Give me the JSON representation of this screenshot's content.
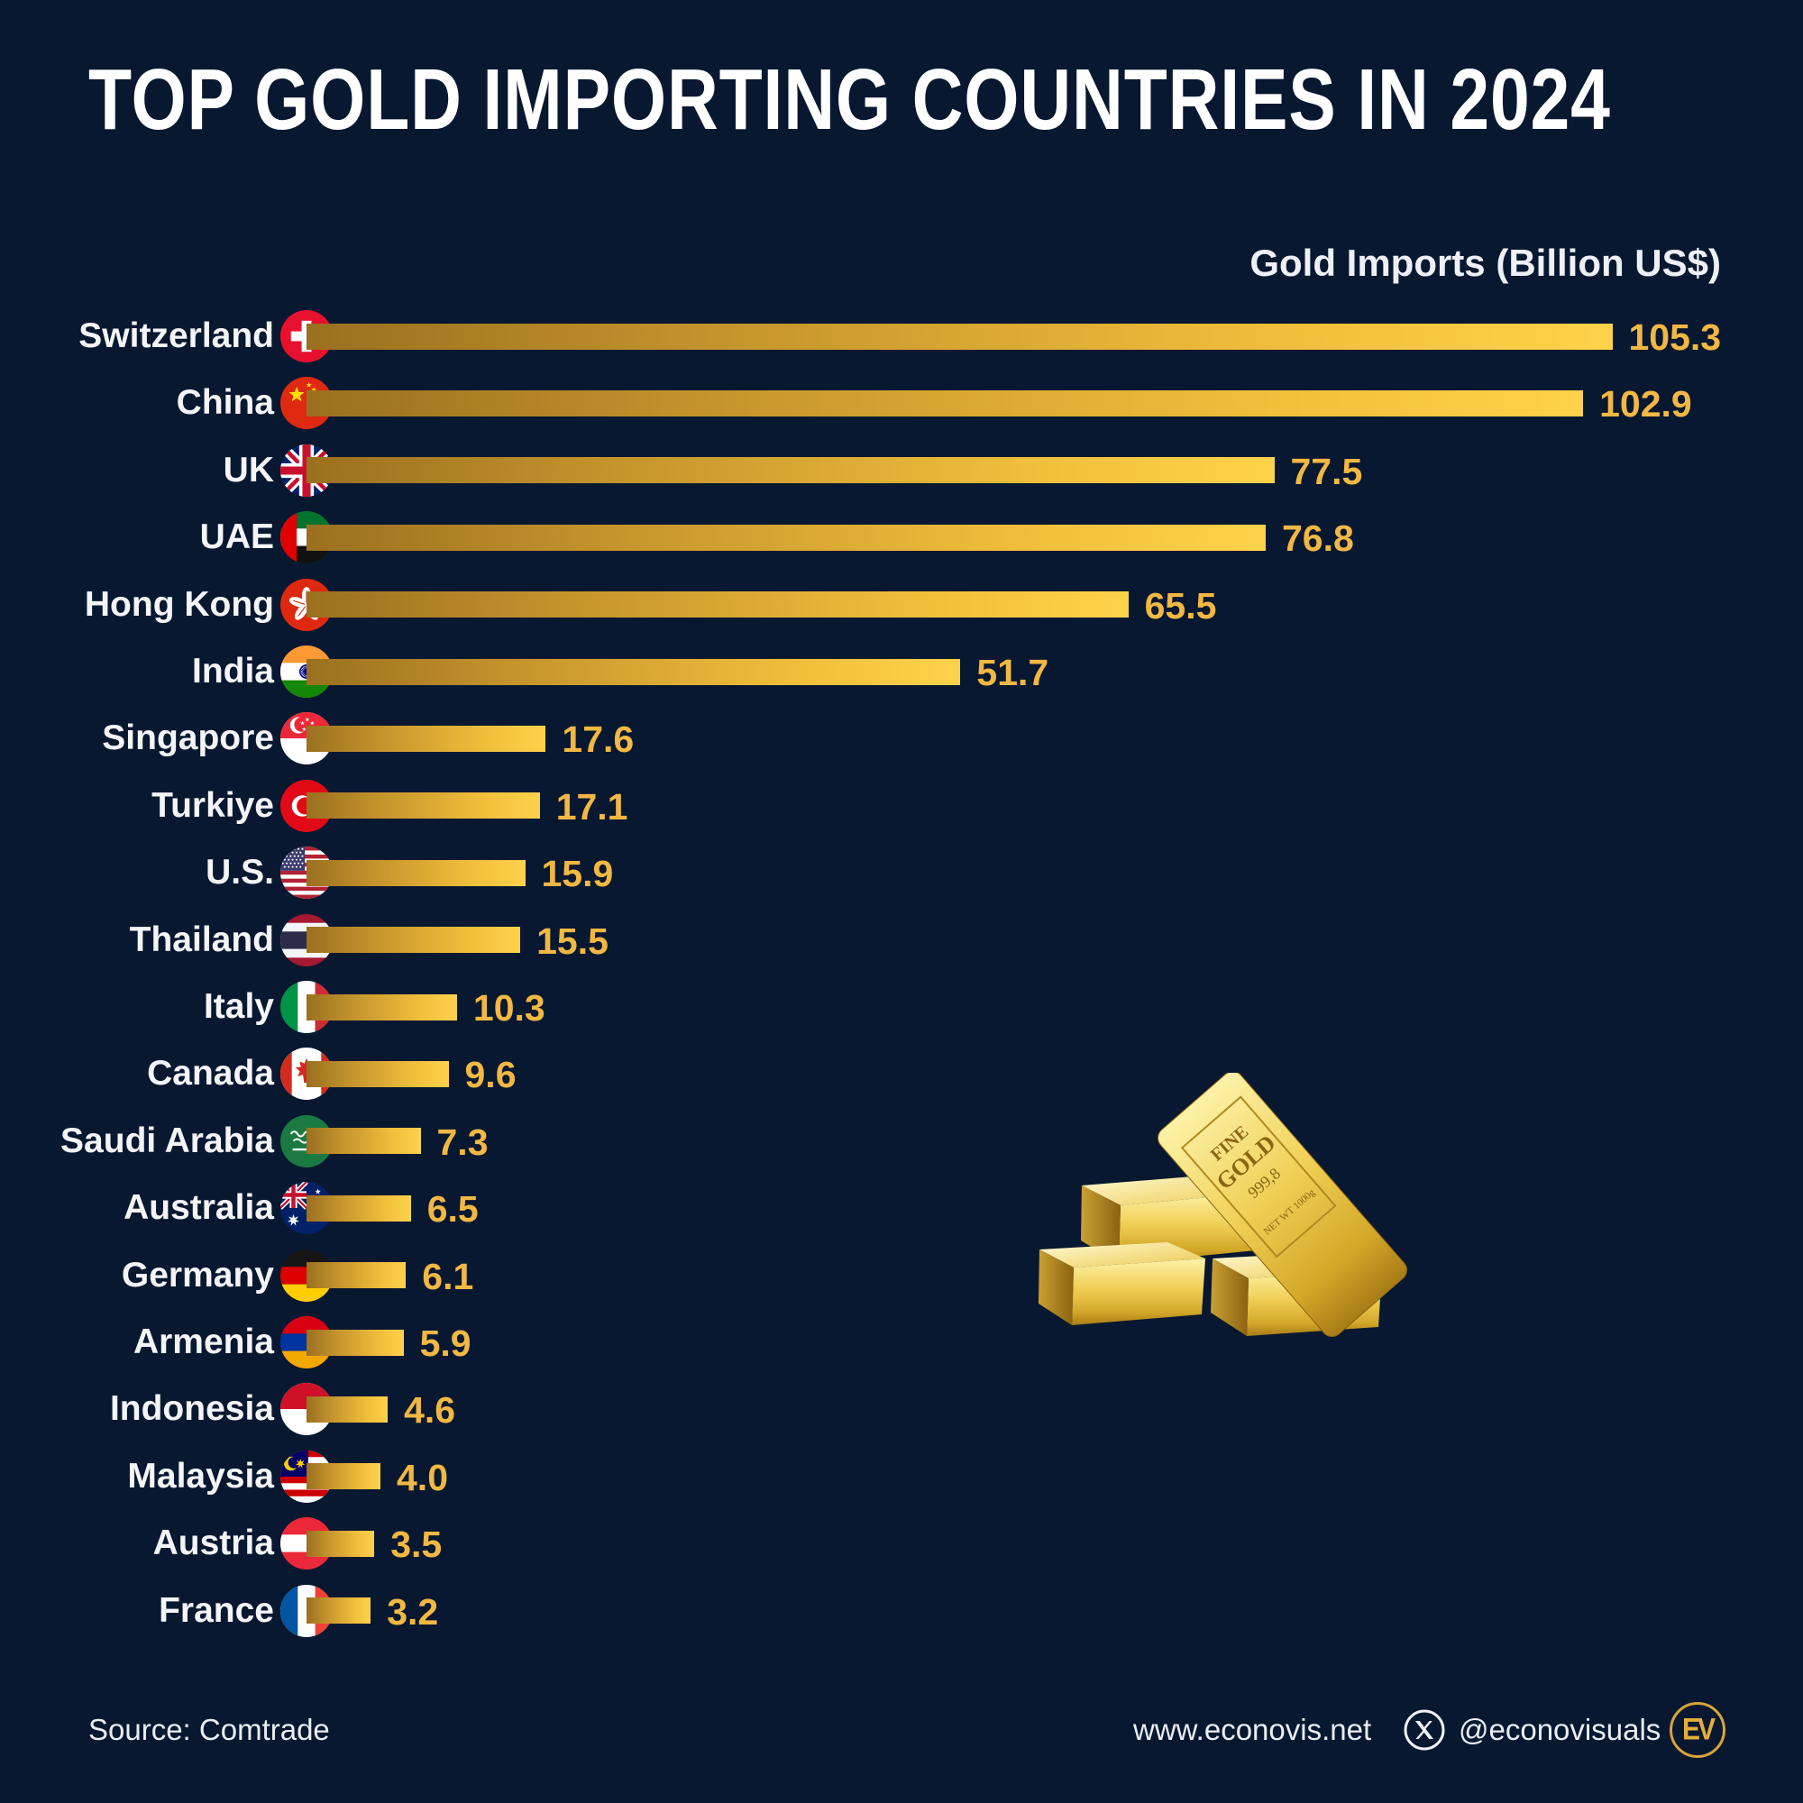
{
  "title": "TOP GOLD IMPORTING COUNTRIES IN 2024",
  "chart_data": {
    "type": "bar",
    "orientation": "horizontal",
    "axis_label": "Gold Imports (Billion US$)",
    "unit": "Billion US$",
    "xlim": [
      0,
      110
    ],
    "sort": "descending",
    "categories": [
      "Switzerland",
      "China",
      "UK",
      "UAE",
      "Hong Kong",
      "India",
      "Singapore",
      "Turkiye",
      "U.S.",
      "Thailand",
      "Italy",
      "Canada",
      "Saudi Arabia",
      "Australia",
      "Germany",
      "Armenia",
      "Indonesia",
      "Malaysia",
      "Austria",
      "France"
    ],
    "values": [
      105.3,
      102.9,
      77.5,
      76.8,
      65.5,
      51.7,
      17.6,
      17.1,
      15.9,
      15.5,
      10.3,
      9.6,
      7.3,
      6.5,
      6.1,
      5.9,
      4.6,
      4.0,
      3.5,
      3.2
    ],
    "value_labels": [
      "105.3",
      "102.9",
      "77.5",
      "76.8",
      "65.5",
      "51.7",
      "17.6",
      "17.1",
      "15.9",
      "15.5",
      "10.3",
      "9.6",
      "7.3",
      "6.5",
      "6.1",
      "5.9",
      "4.6",
      "4.0",
      "3.5",
      "3.2"
    ],
    "flag_icons": [
      "flag-switzerland-icon",
      "flag-china-icon",
      "flag-uk-icon",
      "flag-uae-icon",
      "flag-hong-kong-icon",
      "flag-india-icon",
      "flag-singapore-icon",
      "flag-turkiye-icon",
      "flag-us-icon",
      "flag-thailand-icon",
      "flag-italy-icon",
      "flag-canada-icon",
      "flag-saudi-arabia-icon",
      "flag-australia-icon",
      "flag-germany-icon",
      "flag-armenia-icon",
      "flag-indonesia-icon",
      "flag-malaysia-icon",
      "flag-austria-icon",
      "flag-france-icon"
    ],
    "flag_codes": [
      "ch",
      "cn",
      "gb",
      "ae",
      "hk",
      "in",
      "sg",
      "tr",
      "us",
      "th",
      "it",
      "ca",
      "sa",
      "au",
      "de",
      "am",
      "id",
      "my",
      "at",
      "fr"
    ]
  },
  "illustration": {
    "name": "gold-bars-illustration",
    "engraving_line1": "FINE",
    "engraving_line2": "GOLD",
    "engraving_line3": "999,8",
    "engraving_line4": "NET WT 1000g"
  },
  "footer": {
    "source": "Source: Comtrade",
    "website": "www.econovis.net",
    "social_icon": "x-icon",
    "social_handle": "@econovisuals",
    "logo_text": "EV"
  },
  "colors": {
    "background": "#081830",
    "bar_gradient_start": "#9a7020",
    "bar_gradient_end": "#ffd24b",
    "value_text": "#f2b843",
    "label_text": "#f3f5f7",
    "title_text": "#ffffff",
    "logo_gold": "#d9a43a"
  }
}
